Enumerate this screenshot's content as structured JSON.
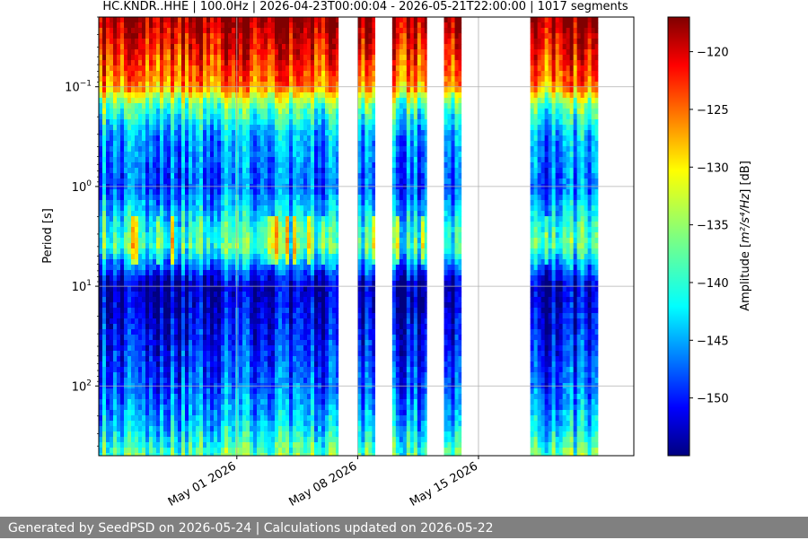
{
  "chart_data": {
    "type": "heatmap",
    "title": "HC.KNDR..HHE | 100.0Hz | 2026-04-23T00:00:04 - 2026-05-21T22:00:00 | 1017 segments",
    "ylabel": "Period [s]",
    "colorbar_label_prefix": "Amplitude [",
    "colorbar_label_units": "m²/s⁴/Hz",
    "colorbar_label_suffix": "] [dB]",
    "y_scale": "log",
    "y_range": [
      0.02,
      500
    ],
    "y_ticks": [
      {
        "value": 0.1,
        "base": "10",
        "exp": "−1"
      },
      {
        "value": 1,
        "base": "10",
        "exp": "0"
      },
      {
        "value": 10,
        "base": "10",
        "exp": "1"
      },
      {
        "value": 100,
        "base": "10",
        "exp": "2"
      }
    ],
    "x_range": [
      "2026-04-23",
      "2026-05-24"
    ],
    "x_ticks": [
      {
        "date": "2026-05-01",
        "label": "May 01 2026"
      },
      {
        "date": "2026-05-08",
        "label": "May 08 2026"
      },
      {
        "date": "2026-05-15",
        "label": "May 15 2026"
      }
    ],
    "colorbar_range_db": [
      -155,
      -117
    ],
    "colorbar_ticks": [
      -120,
      -125,
      -130,
      -135,
      -140,
      -145,
      -150
    ],
    "colormap": "jet",
    "grid": true,
    "data_blocks": [
      {
        "start": "2026-04-23",
        "end": "2026-05-06T21:00"
      },
      {
        "start": "2026-05-08",
        "end": "2026-05-09"
      },
      {
        "start": "2026-05-10",
        "end": "2026-05-12"
      },
      {
        "start": "2026-05-13",
        "end": "2026-05-14"
      },
      {
        "start": "2026-05-18",
        "end": "2026-05-21T22:00"
      }
    ],
    "amplitude_profile_db": [
      {
        "period": 0.02,
        "db": -118
      },
      {
        "period": 0.05,
        "db": -123
      },
      {
        "period": 0.1,
        "db": -127
      },
      {
        "period": 0.15,
        "db": -137
      },
      {
        "period": 0.3,
        "db": -144
      },
      {
        "period": 1.0,
        "db": -147
      },
      {
        "period": 2.5,
        "db": -140
      },
      {
        "period": 4.0,
        "db": -138
      },
      {
        "period": 6.0,
        "db": -145
      },
      {
        "period": 10,
        "db": -153
      },
      {
        "period": 30,
        "db": -150
      },
      {
        "period": 100,
        "db": -147
      },
      {
        "period": 250,
        "db": -143
      },
      {
        "period": 500,
        "db": -137
      }
    ]
  },
  "footer": {
    "text": "Generated by SeedPSD on 2026-05-24 | Calculations updated on 2026-05-22"
  }
}
